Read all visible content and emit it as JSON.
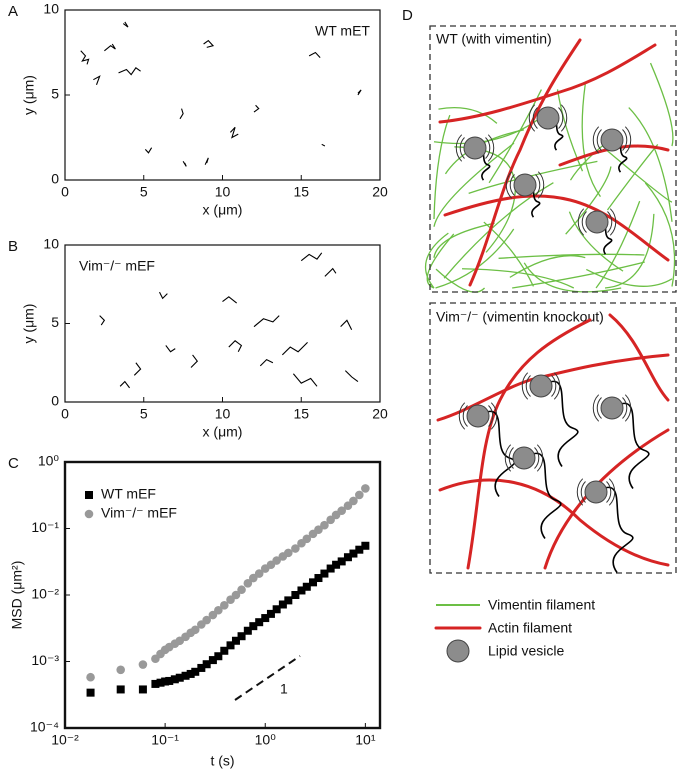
{
  "chart_data": [
    {
      "type": "tracks",
      "panel_label": "A",
      "annotation": "WT mET",
      "xlabel": "x (μm)",
      "ylabel": "y (μm)",
      "xlim": [
        0,
        20
      ],
      "ylim": [
        0,
        10
      ],
      "xticks": [
        0,
        5,
        10,
        15,
        20
      ],
      "yticks": [
        0,
        5,
        10
      ],
      "color": "#000000",
      "tracks": [
        {
          "x": [
            1,
            1.3,
            1.1,
            1.5,
            1.4
          ],
          "y": [
            7.6,
            7.3,
            7.0,
            7.1,
            6.8
          ]
        },
        {
          "x": [
            2.5,
            2.9,
            3.2,
            3.0
          ],
          "y": [
            7.6,
            7.9,
            7.7,
            8.0
          ]
        },
        {
          "x": [
            3.4,
            3.9,
            4.2,
            4.5,
            4.8
          ],
          "y": [
            6.3,
            6.5,
            6.2,
            6.6,
            6.4
          ]
        },
        {
          "x": [
            1.8,
            2.2,
            2.0
          ],
          "y": [
            5.9,
            6.1,
            5.6
          ]
        },
        {
          "x": [
            3.7,
            4.0,
            3.8
          ],
          "y": [
            9.2,
            9.0,
            9.3
          ]
        },
        {
          "x": [
            8.8,
            9.1,
            9.4,
            9.0
          ],
          "y": [
            8.0,
            8.2,
            7.9,
            7.8
          ]
        },
        {
          "x": [
            7.3,
            7.5,
            7.4
          ],
          "y": [
            3.6,
            3.9,
            4.2
          ]
        },
        {
          "x": [
            10.5,
            10.8,
            10.6,
            11.0
          ],
          "y": [
            2.8,
            3.1,
            2.5,
            2.7
          ]
        },
        {
          "x": [
            9.0,
            9.1,
            8.9
          ],
          "y": [
            1.0,
            1.3,
            0.9
          ]
        },
        {
          "x": [
            12.0,
            12.3,
            12.1
          ],
          "y": [
            4.0,
            4.2,
            4.4
          ]
        },
        {
          "x": [
            15.5,
            15.9,
            16.2
          ],
          "y": [
            7.3,
            7.5,
            7.2
          ]
        },
        {
          "x": [
            18.6,
            18.8,
            18.6
          ],
          "y": [
            5.0,
            5.3,
            5.1
          ]
        },
        {
          "x": [
            7.5,
            7.7,
            7.6
          ],
          "y": [
            1.1,
            0.8,
            1.0
          ]
        },
        {
          "x": [
            16.3,
            16.5
          ],
          "y": [
            2.1,
            2.0
          ]
        },
        {
          "x": [
            5.1,
            5.3,
            5.5
          ],
          "y": [
            1.8,
            1.6,
            1.9
          ]
        }
      ]
    },
    {
      "type": "tracks",
      "panel_label": "B",
      "annotation": "Vim⁻/⁻ mEF",
      "xlabel": "x (μm)",
      "ylabel": "y (μm)",
      "xlim": [
        0,
        20
      ],
      "ylim": [
        0,
        10
      ],
      "xticks": [
        0,
        5,
        10,
        15,
        20
      ],
      "yticks": [
        0,
        5,
        10
      ],
      "color": "#000000",
      "tracks": [
        {
          "x": [
            2.2,
            2.5,
            2.3
          ],
          "y": [
            5.5,
            5.2,
            4.9
          ]
        },
        {
          "x": [
            4.4,
            4.8,
            4.5
          ],
          "y": [
            1.7,
            2.1,
            2.5
          ]
        },
        {
          "x": [
            6.4,
            6.7,
            7.0
          ],
          "y": [
            3.6,
            3.2,
            3.4
          ]
        },
        {
          "x": [
            8.0,
            8.4,
            8.1
          ],
          "y": [
            2.2,
            2.6,
            3.0
          ]
        },
        {
          "x": [
            10.4,
            10.8,
            11.2,
            11.0
          ],
          "y": [
            3.5,
            3.9,
            3.6,
            3.2
          ]
        },
        {
          "x": [
            12.0,
            12.6,
            13.2,
            13.6
          ],
          "y": [
            4.8,
            5.3,
            5.1,
            5.5
          ]
        },
        {
          "x": [
            13.8,
            14.3,
            14.8,
            15.4
          ],
          "y": [
            3.0,
            3.5,
            3.2,
            3.8
          ]
        },
        {
          "x": [
            14.5,
            15.0,
            15.6,
            16.0
          ],
          "y": [
            1.8,
            1.2,
            1.5,
            1.0
          ]
        },
        {
          "x": [
            15.0,
            15.5,
            16.0,
            16.3
          ],
          "y": [
            9.0,
            9.4,
            9.1,
            9.5
          ]
        },
        {
          "x": [
            16.5,
            17.0,
            17.2
          ],
          "y": [
            8.0,
            8.5,
            8.2
          ]
        },
        {
          "x": [
            17.5,
            17.9,
            18.2
          ],
          "y": [
            4.8,
            5.2,
            4.6
          ]
        },
        {
          "x": [
            17.8,
            18.2,
            18.6
          ],
          "y": [
            2.0,
            1.6,
            1.3
          ]
        },
        {
          "x": [
            10.0,
            10.4,
            10.9
          ],
          "y": [
            6.4,
            6.7,
            6.3
          ]
        },
        {
          "x": [
            6.0,
            6.2,
            6.5
          ],
          "y": [
            7.0,
            6.6,
            6.9
          ]
        },
        {
          "x": [
            3.5,
            3.8,
            4.1
          ],
          "y": [
            1.0,
            1.3,
            0.9
          ]
        },
        {
          "x": [
            12.4,
            12.8,
            13.2
          ],
          "y": [
            2.3,
            2.7,
            2.5
          ]
        }
      ]
    },
    {
      "type": "scatter",
      "panel_label": "C",
      "xlabel": "t (s)",
      "ylabel": "MSD (μm²)",
      "slope_label": "1",
      "xscale": "log",
      "yscale": "log",
      "xlim": [
        0.01,
        14
      ],
      "ylim": [
        0.0001,
        1
      ],
      "xticks": [
        {
          "value": 0.01,
          "label": "10⁻²"
        },
        {
          "value": 0.1,
          "label": "10⁻¹"
        },
        {
          "value": 1,
          "label": "10⁰"
        },
        {
          "value": 10,
          "label": "10¹"
        }
      ],
      "yticks": [
        {
          "value": 0.0001,
          "label": "10⁻⁴"
        },
        {
          "value": 0.001,
          "label": "10⁻³"
        },
        {
          "value": 0.01,
          "label": "10⁻²"
        },
        {
          "value": 0.1,
          "label": "10⁻¹"
        },
        {
          "value": 1,
          "label": "10⁰"
        }
      ],
      "legend": "upper left",
      "x": [
        0.018,
        0.036,
        0.06,
        0.08,
        0.09,
        0.1,
        0.11,
        0.125,
        0.14,
        0.16,
        0.18,
        0.2,
        0.23,
        0.26,
        0.3,
        0.34,
        0.39,
        0.45,
        0.51,
        0.58,
        0.67,
        0.76,
        0.87,
        1,
        1.14,
        1.3,
        1.5,
        1.7,
        2,
        2.3,
        2.6,
        3,
        3.4,
        3.9,
        4.5,
        5.1,
        5.8,
        6.7,
        7.6,
        8.7,
        10
      ],
      "series": [
        {
          "name": "WT mEF",
          "color": "#000000",
          "marker": "square",
          "values": [
            0.00034,
            0.00038,
            0.00038,
            0.00046,
            0.00048,
            0.0005,
            0.00051,
            0.00054,
            0.00057,
            0.00061,
            0.00065,
            0.0007,
            0.0008,
            0.00091,
            0.00105,
            0.0012,
            0.00145,
            0.00175,
            0.00205,
            0.0024,
            0.0029,
            0.0034,
            0.0039,
            0.0045,
            0.0052,
            0.0061,
            0.0072,
            0.0083,
            0.01,
            0.0117,
            0.0133,
            0.0155,
            0.018,
            0.021,
            0.025,
            0.0285,
            0.032,
            0.037,
            0.042,
            0.048,
            0.055
          ]
        },
        {
          "name": "Vim⁻/⁻ mEF",
          "color": "#999999",
          "marker": "circle",
          "values": [
            0.00058,
            0.00075,
            0.0009,
            0.0011,
            0.0013,
            0.0015,
            0.00165,
            0.00185,
            0.00205,
            0.00235,
            0.0027,
            0.003,
            0.0036,
            0.0042,
            0.005,
            0.0059,
            0.007,
            0.0085,
            0.01,
            0.012,
            0.015,
            0.018,
            0.021,
            0.025,
            0.0285,
            0.033,
            0.038,
            0.043,
            0.05,
            0.06,
            0.07,
            0.083,
            0.096,
            0.112,
            0.135,
            0.16,
            0.185,
            0.22,
            0.26,
            0.32,
            0.4
          ]
        }
      ]
    }
  ],
  "diagram": {
    "panel_label": "D",
    "wt_title": "WT (with vimentin)",
    "ko_title": "Vim⁻/⁻ (vimentin knockout)",
    "legend": [
      "Vimentin filament",
      "Actin filament",
      "Lipid vesicle"
    ]
  }
}
